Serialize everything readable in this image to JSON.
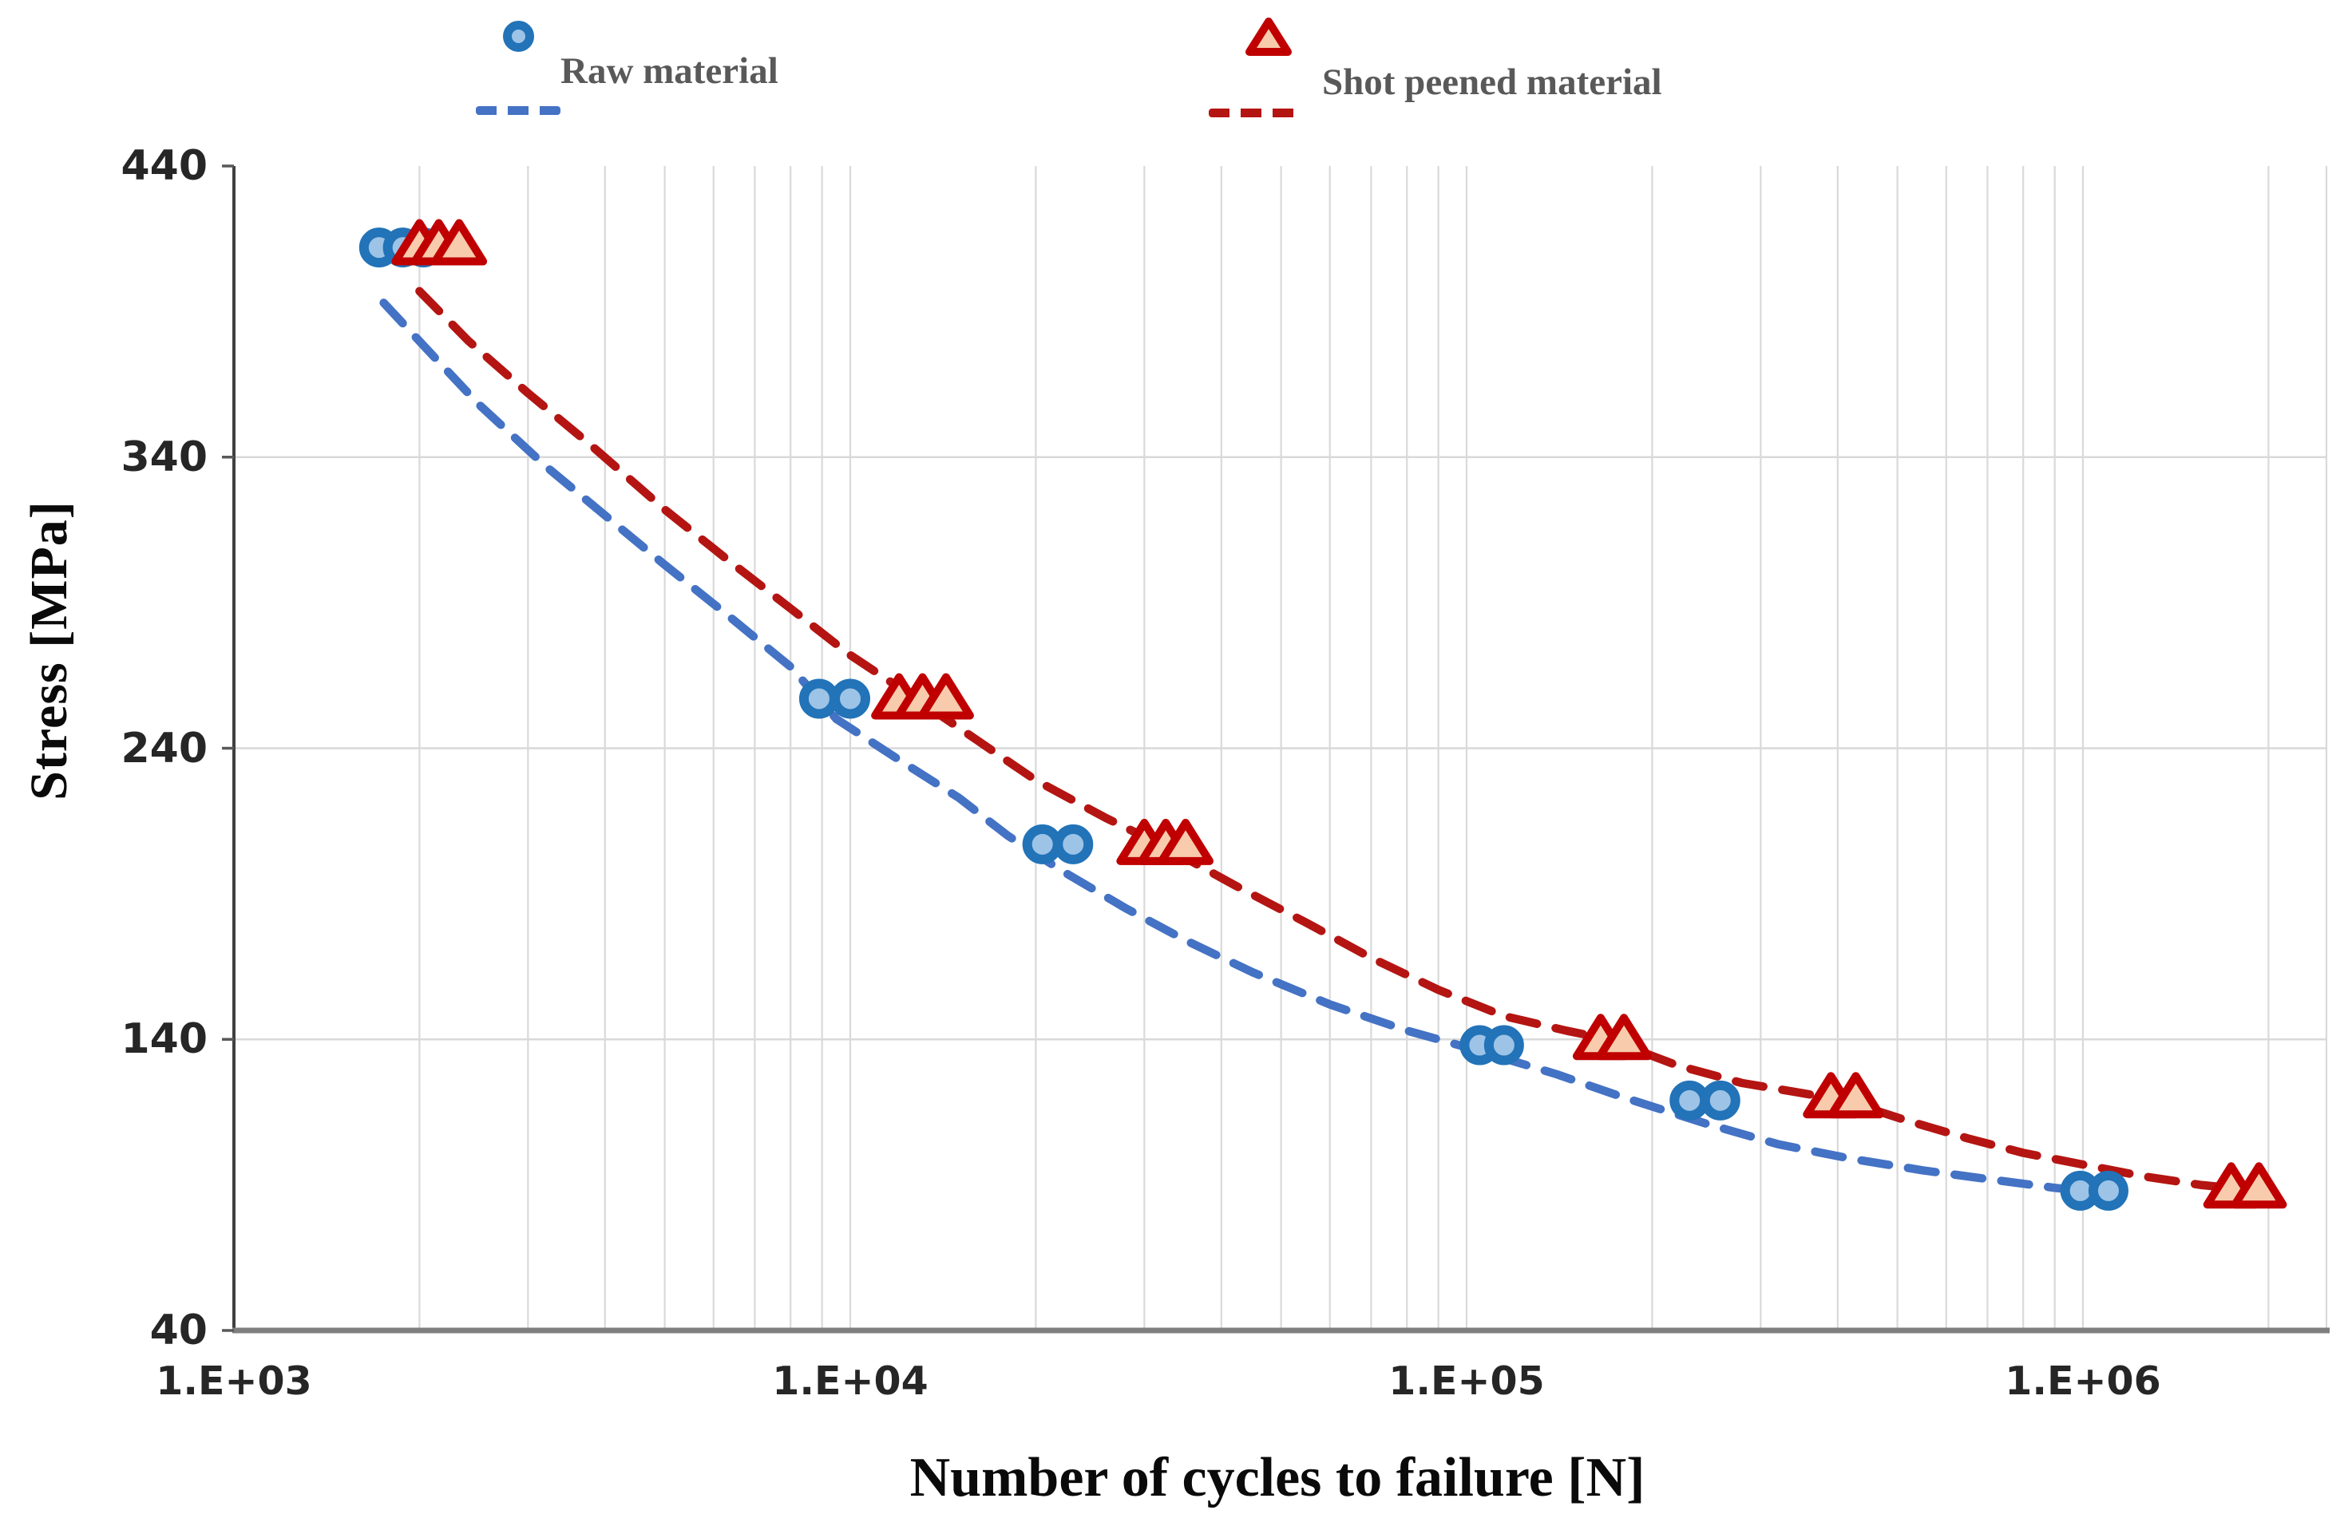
{
  "legend": {
    "raw": {
      "label": "Raw material",
      "line_color": "#4472C4",
      "marker_border": "#2273B8",
      "marker_fill": "#9DC3E6"
    },
    "shot": {
      "label": "Shot peened material",
      "line_color": "#B41512",
      "marker_border": "#C00000",
      "marker_fill": "#F8CBAD"
    }
  },
  "axes": {
    "x": {
      "title": "Number of cycles to failure [N]",
      "scale": "log",
      "tick_labels": [
        "1.E+03",
        "1.E+04",
        "1.E+05",
        "1.E+06"
      ],
      "tick_values": [
        1000,
        10000,
        100000,
        1000000
      ]
    },
    "y": {
      "title": "Stress [MPa]",
      "scale": "linear",
      "tick_labels": [
        "440",
        "340",
        "240",
        "140",
        "40"
      ],
      "tick_values": [
        440,
        340,
        240,
        140,
        40
      ]
    }
  },
  "chart_data": {
    "type": "scatter",
    "title": "",
    "xlabel": "Number of cycles to failure [N]",
    "ylabel": "Stress [MPa]",
    "x_scale": "log",
    "xlim": [
      1000,
      2480000
    ],
    "ylim": [
      40,
      440
    ],
    "grid": true,
    "legend_position": "top",
    "gridline_color": "#D9D9D9",
    "y_gridline_values": [
      340,
      240,
      140
    ],
    "series": [
      {
        "name": "Raw material",
        "marker": "circle",
        "marker_border": "#2273B8",
        "marker_fill": "#9DC3E6",
        "line_color": "#4472C4",
        "line_style": "dashed",
        "points": [
          [
            1720,
            412
          ],
          [
            1880,
            412
          ],
          [
            2030,
            412
          ],
          [
            8900,
            257
          ],
          [
            10000,
            257
          ],
          [
            20500,
            207
          ],
          [
            23000,
            207
          ],
          [
            105000,
            138
          ],
          [
            115000,
            138
          ],
          [
            230000,
            119
          ],
          [
            258000,
            119
          ],
          [
            990000,
            88
          ],
          [
            1100000,
            88
          ]
        ],
        "trend": [
          [
            1750,
            393
          ],
          [
            2100,
            375
          ],
          [
            2500,
            358
          ],
          [
            3200,
            337
          ],
          [
            4000,
            320
          ],
          [
            5000,
            303
          ],
          [
            6300,
            286
          ],
          [
            8000,
            268
          ],
          [
            9500,
            250
          ],
          [
            12000,
            236
          ],
          [
            15000,
            223
          ],
          [
            18000,
            210
          ],
          [
            22000,
            198
          ],
          [
            28000,
            185
          ],
          [
            35000,
            174
          ],
          [
            45000,
            163
          ],
          [
            60000,
            152
          ],
          [
            80000,
            143
          ],
          [
            105000,
            136
          ],
          [
            140000,
            128
          ],
          [
            180000,
            120
          ],
          [
            245000,
            111
          ],
          [
            320000,
            104
          ],
          [
            420000,
            99
          ],
          [
            550000,
            95
          ],
          [
            700000,
            92
          ],
          [
            900000,
            89
          ],
          [
            1100000,
            87
          ]
        ]
      },
      {
        "name": "Shot peened material",
        "marker": "triangle",
        "marker_border": "#C00000",
        "marker_fill": "#F8CBAD",
        "line_color": "#B41512",
        "line_style": "dashed",
        "points": [
          [
            2000,
            413
          ],
          [
            2150,
            413
          ],
          [
            2320,
            413
          ],
          [
            12000,
            257
          ],
          [
            13100,
            257
          ],
          [
            14300,
            257
          ],
          [
            30000,
            207
          ],
          [
            32500,
            207
          ],
          [
            35000,
            207
          ],
          [
            165000,
            140
          ],
          [
            180000,
            140
          ],
          [
            390000,
            120
          ],
          [
            428000,
            120
          ],
          [
            1740000,
            89
          ],
          [
            1930000,
            89
          ]
        ],
        "trend": [
          [
            2000,
            397
          ],
          [
            2400,
            380
          ],
          [
            3000,
            362
          ],
          [
            3800,
            344
          ],
          [
            5000,
            322
          ],
          [
            6300,
            305
          ],
          [
            8000,
            288
          ],
          [
            10000,
            272
          ],
          [
            13000,
            256
          ],
          [
            16000,
            243
          ],
          [
            20000,
            229
          ],
          [
            26000,
            216
          ],
          [
            32500,
            206
          ],
          [
            42000,
            193
          ],
          [
            55000,
            180
          ],
          [
            70000,
            168
          ],
          [
            90000,
            157
          ],
          [
            115000,
            148
          ],
          [
            145000,
            143
          ],
          [
            170000,
            140
          ],
          [
            220000,
            131
          ],
          [
            280000,
            125
          ],
          [
            340000,
            122
          ],
          [
            410000,
            119
          ],
          [
            520000,
            112
          ],
          [
            650000,
            106
          ],
          [
            800000,
            101
          ],
          [
            1000000,
            97
          ],
          [
            1250000,
            93
          ],
          [
            1550000,
            90
          ],
          [
            1930000,
            88
          ]
        ]
      }
    ]
  }
}
